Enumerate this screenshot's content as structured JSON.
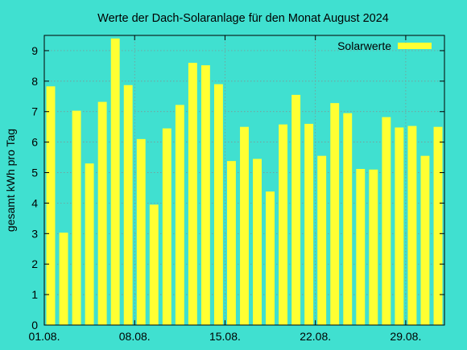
{
  "colors": {
    "background": "#40E0D0",
    "bar": "#FFFF33",
    "axis": "#000000",
    "grid": "#8a8a8a"
  },
  "chart_data": {
    "type": "bar",
    "title": "Werte der Dach-Solaranlage für den Monat August 2024",
    "xlabel": "",
    "ylabel": "gesamt kWh pro Tag",
    "ylim": [
      0,
      9.5
    ],
    "yticks": [
      0,
      1,
      2,
      3,
      4,
      5,
      6,
      7,
      8,
      9
    ],
    "xlim": [
      1,
      32
    ],
    "xticks": [
      {
        "day": 1,
        "label": "01.08."
      },
      {
        "day": 8,
        "label": "08.08."
      },
      {
        "day": 15,
        "label": "15.08."
      },
      {
        "day": 22,
        "label": "22.08."
      },
      {
        "day": 29,
        "label": "29.08."
      }
    ],
    "grid": true,
    "legend_position": "top-right",
    "series": [
      {
        "name": "Solarwerte",
        "color": "#FFFF33",
        "days": [
          1,
          2,
          3,
          4,
          5,
          6,
          7,
          8,
          9,
          10,
          11,
          12,
          13,
          14,
          15,
          16,
          17,
          18,
          19,
          20,
          21,
          22,
          23,
          24,
          25,
          26,
          27,
          28,
          29,
          30,
          31
        ],
        "values": [
          7.83,
          3.03,
          7.03,
          5.3,
          7.32,
          9.4,
          7.87,
          6.1,
          3.95,
          6.45,
          7.22,
          8.6,
          8.52,
          7.9,
          5.38,
          6.5,
          5.45,
          4.38,
          6.58,
          7.55,
          6.6,
          5.55,
          7.28,
          6.95,
          5.12,
          5.1,
          6.82,
          6.48,
          6.53,
          5.55,
          6.5
        ]
      }
    ]
  }
}
